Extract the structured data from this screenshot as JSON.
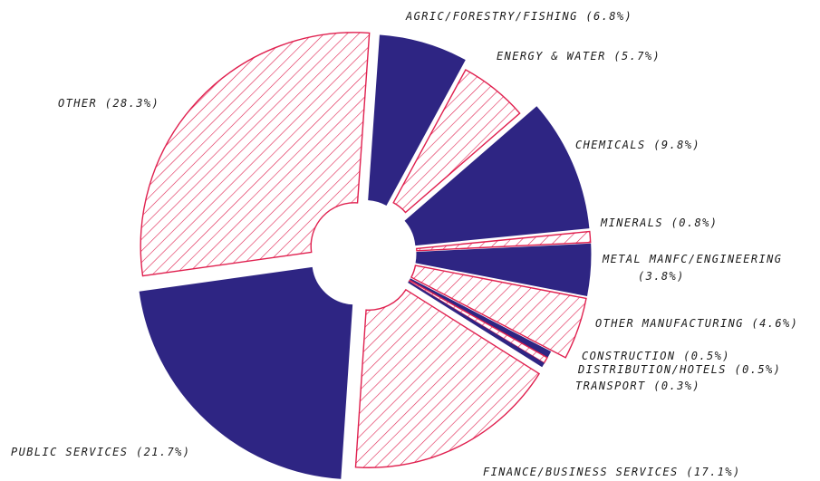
{
  "chart_data": {
    "type": "pie",
    "title": "",
    "legend": "none",
    "colors": {
      "solid": "#2e2583",
      "hatched_stroke": "#e0204f"
    },
    "slices": [
      {
        "label": "AGRIC/FORESTRY/FISHING",
        "display": "AGRIC/FORESTRY/FISHING (6.8%)",
        "value": 6.8,
        "pattern": "solid"
      },
      {
        "label": "ENERGY & WATER",
        "display": "ENERGY & WATER (5.7%)",
        "value": 5.7,
        "pattern": "hatched"
      },
      {
        "label": "CHEMICALS",
        "display": "CHEMICALS (9.8%)",
        "value": 9.8,
        "pattern": "solid"
      },
      {
        "label": "MINERALS",
        "display": "MINERALS (0.8%)",
        "value": 0.8,
        "pattern": "hatched"
      },
      {
        "label": "METAL MANFC/ENGINEERING",
        "display": "METAL MANFC/ENGINEERING",
        "display2": "(3.8%)",
        "value": 3.8,
        "pattern": "solid"
      },
      {
        "label": "OTHER MANUFACTURING",
        "display": "OTHER MANUFACTURING (4.6%)",
        "value": 4.6,
        "pattern": "hatched"
      },
      {
        "label": "CONSTRUCTION",
        "display": "CONSTRUCTION (0.5%)",
        "value": 0.5,
        "pattern": "solid"
      },
      {
        "label": "DISTRIBUTION/HOTELS",
        "display": "DISTRIBUTION/HOTELS (0.5%)",
        "value": 0.5,
        "pattern": "hatched"
      },
      {
        "label": "TRANSPORT",
        "display": "TRANSPORT (0.3%)",
        "value": 0.3,
        "pattern": "solid"
      },
      {
        "label": "FINANCE/BUSINESS SERVICES",
        "display": "FINANCE/BUSINESS SERVICES (17.1%)",
        "value": 17.1,
        "pattern": "hatched"
      },
      {
        "label": "PUBLIC SERVICES",
        "display": "PUBLIC SERVICES (21.7%)",
        "value": 21.7,
        "pattern": "solid"
      },
      {
        "label": "OTHER",
        "display": "OTHER (28.3%)",
        "value": 28.3,
        "pattern": "hatched"
      }
    ]
  }
}
